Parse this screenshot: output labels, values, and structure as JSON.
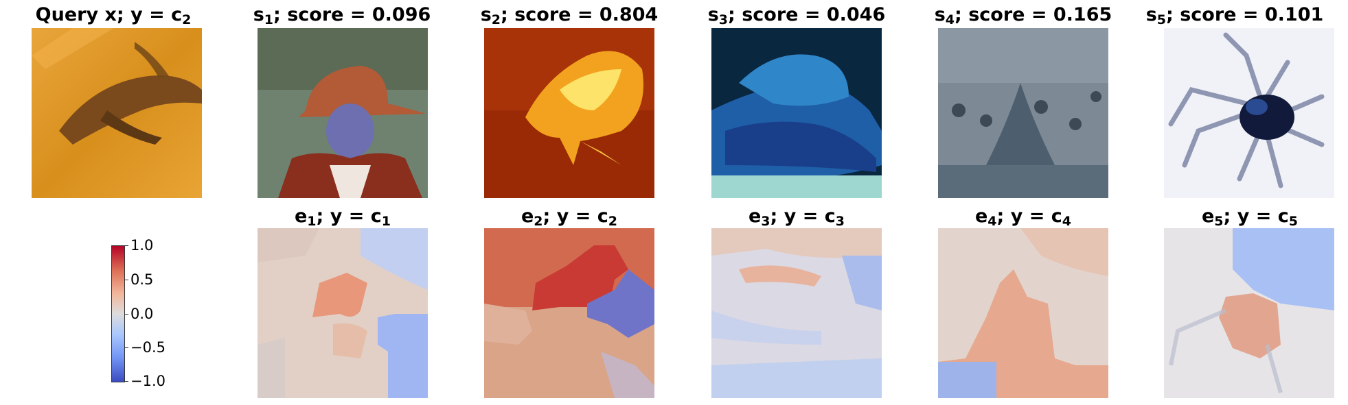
{
  "figure": {
    "row1": [
      {
        "name": "Query x",
        "sym": "y = c",
        "sub": "2"
      },
      {
        "sym": "s",
        "sub": "1",
        "score": "; score = 0.096"
      },
      {
        "sym": "s",
        "sub": "2",
        "score": "; score = 0.804"
      },
      {
        "sym": "s",
        "sub": "3",
        "score": "; score = 0.046"
      },
      {
        "sym": "s",
        "sub": "4",
        "score": "; score = 0.165"
      },
      {
        "sym": "s",
        "sub": "5",
        "score": "; score = 0.101"
      }
    ],
    "row2": [
      {
        "sym": "e",
        "sub": "1",
        "eq": "; y = c",
        "sub2": "1"
      },
      {
        "sym": "e",
        "sub": "2",
        "eq": "; y = c",
        "sub2": "2"
      },
      {
        "sym": "e",
        "sub": "3",
        "eq": "; y = c",
        "sub2": "3"
      },
      {
        "sym": "e",
        "sub": "4",
        "eq": "; y = c",
        "sub2": "4"
      },
      {
        "sym": "e",
        "sub": "5",
        "eq": "; y = c",
        "sub2": "5"
      }
    ],
    "colorbar": {
      "ticks": [
        "1.0",
        "0.5",
        "0.0",
        "−0.5",
        "−1.0"
      ],
      "colormap": "coolwarm",
      "range": [
        -1.0,
        1.0
      ]
    }
  }
}
